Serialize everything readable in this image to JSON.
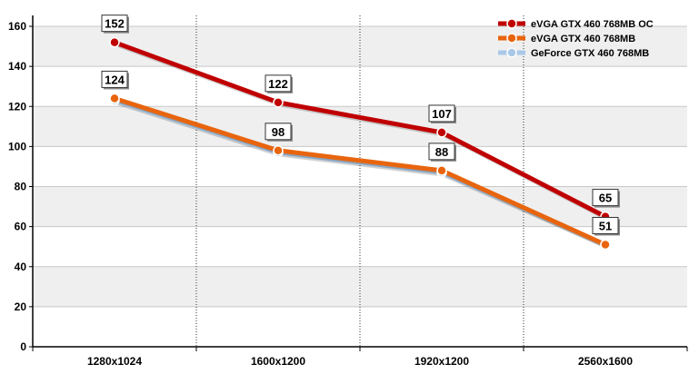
{
  "chart_data": {
    "type": "line",
    "categories": [
      "1280x1024",
      "1600x1200",
      "1920x1200",
      "2560x1600"
    ],
    "ylim": [
      0,
      160
    ],
    "yticks": [
      0,
      20,
      40,
      60,
      80,
      100,
      120,
      140,
      160
    ],
    "grid": true,
    "legend_position": "top-right",
    "series": [
      {
        "name": "eVGA GTX 460 768MB OC",
        "values": [
          152,
          122,
          107,
          65
        ],
        "color": "#c00000",
        "show_labels": true
      },
      {
        "name": "eVGA GTX 460 768MB",
        "values": [
          124,
          98,
          88,
          51
        ],
        "color": "#e8650e",
        "show_labels": true
      },
      {
        "name": "GeForce GTX 460 768MB",
        "values": [
          123,
          97,
          87,
          51
        ],
        "color": "#a9c8e8",
        "show_labels": false
      }
    ]
  }
}
